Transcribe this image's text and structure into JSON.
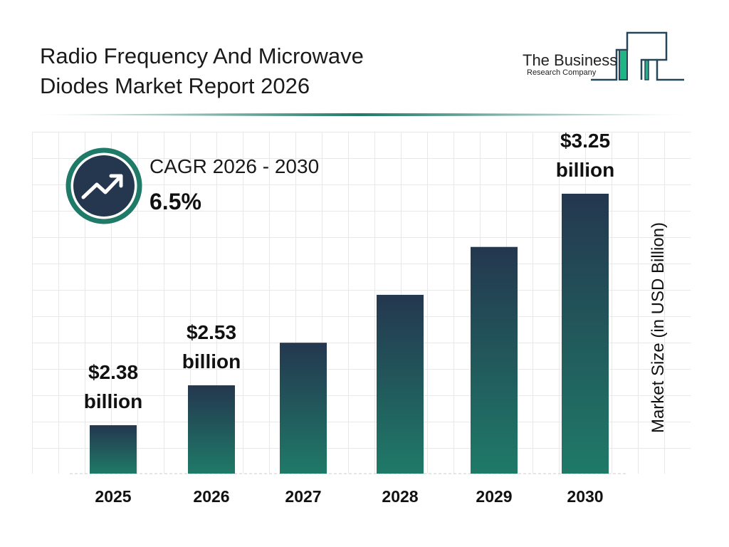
{
  "title_line1": "Radio Frequency And Microwave",
  "title_line2": "Diodes Market Report 2026",
  "logo": {
    "line1": "The Business",
    "line2": "Research Company"
  },
  "cagr": {
    "label": "CAGR 2026 - 2030",
    "value": "6.5%",
    "icon": "trending-up-icon"
  },
  "colors": {
    "bar_top": "#24374f",
    "bar_bottom": "#1f7a68",
    "accent": "#1f7a68",
    "dark": "#24374f"
  },
  "chart_data": {
    "type": "bar",
    "title": "Radio Frequency And Microwave Diodes Market Report 2026",
    "ylabel": "Market Size (in USD Billion)",
    "xlabel": "",
    "categories": [
      "2025",
      "2026",
      "2027",
      "2028",
      "2029",
      "2030"
    ],
    "values": [
      2.38,
      2.53,
      2.69,
      2.87,
      3.05,
      3.25
    ],
    "data_labels": [
      {
        "category": "2025",
        "line1": "$2.38",
        "line2": "billion"
      },
      {
        "category": "2026",
        "line1": "$2.53",
        "line2": "billion"
      },
      {
        "category": "2030",
        "line1": "$3.25",
        "line2": "billion"
      }
    ],
    "grid": true,
    "legend": "none"
  }
}
